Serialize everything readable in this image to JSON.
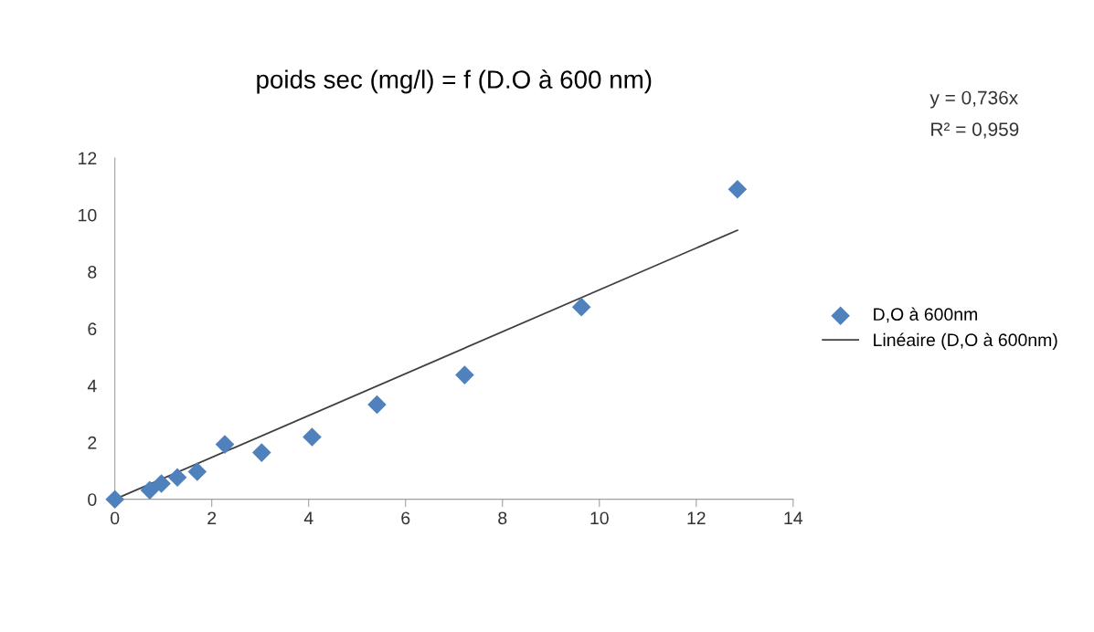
{
  "chart_data": {
    "type": "scatter",
    "title": "poids sec (mg/l) = f (D.O à 600 nm)",
    "x": [
      0,
      0.72,
      0.96,
      1.29,
      1.7,
      2.27,
      3.03,
      4.07,
      5.41,
      7.22,
      9.63,
      12.85
    ],
    "series": [
      {
        "name": "D,O à 600nm",
        "color": "#4f81bd",
        "marker": "diamond",
        "values": [
          0,
          0.32,
          0.55,
          0.77,
          0.97,
          1.93,
          1.64,
          2.19,
          3.33,
          4.37,
          6.76,
          10.9
        ]
      },
      {
        "name": "Linéaire (D,O à 600nm)",
        "type": "line",
        "color": "#404040",
        "x": [
          0,
          12.85
        ],
        "values": [
          0,
          9.46
        ]
      }
    ],
    "xlim": [
      0,
      14
    ],
    "xticks": [
      0,
      2,
      4,
      6,
      8,
      10,
      12,
      14
    ],
    "ylim": [
      0,
      12
    ],
    "yticks": [
      0,
      2,
      4,
      6,
      8,
      10,
      12
    ],
    "annotations": [
      "y = 0,736x",
      "R² = 0,959"
    ],
    "grid": false,
    "legend": "right"
  }
}
